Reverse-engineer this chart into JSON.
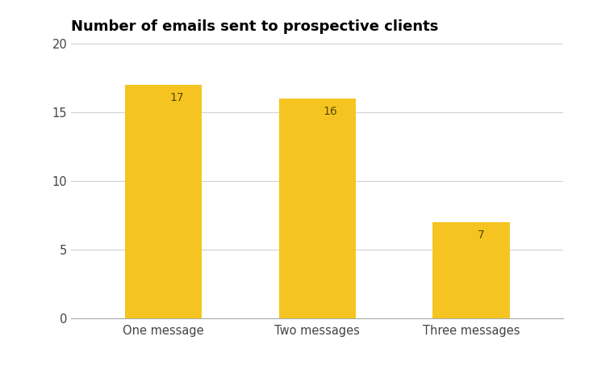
{
  "title": "Number of emails sent to prospective clients",
  "categories": [
    "One message",
    "Two messages",
    "Three messages"
  ],
  "values": [
    17,
    16,
    7
  ],
  "bar_color": "#F5C420",
  "label_color": "#5a4a00",
  "background_color": "#ffffff",
  "ylim": [
    0,
    20
  ],
  "yticks": [
    0,
    5,
    10,
    15,
    20
  ],
  "title_fontsize": 13,
  "tick_fontsize": 10.5,
  "label_fontsize": 10,
  "bar_width": 0.5,
  "grid_color": "#d0d0d0"
}
